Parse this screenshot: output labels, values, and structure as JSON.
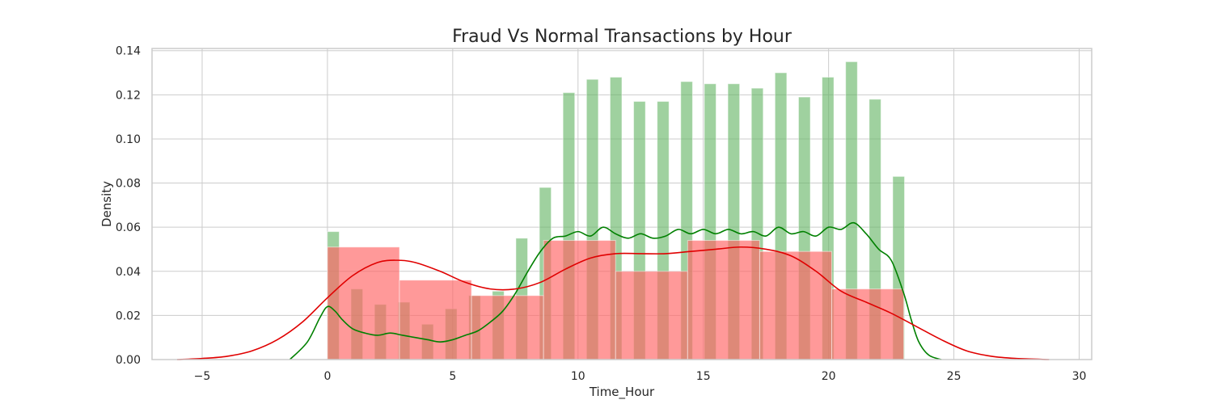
{
  "chart_data": {
    "type": "bar",
    "title": "Fraud Vs Normal Transactions by Hour",
    "xlabel": "Time_Hour",
    "ylabel": "Density",
    "xlim": [
      -7,
      30.5
    ],
    "ylim": [
      0,
      0.141
    ],
    "xticks": [
      -5,
      0,
      5,
      10,
      15,
      20,
      25,
      30
    ],
    "xtick_labels": [
      "−5",
      "0",
      "5",
      "10",
      "15",
      "20",
      "25",
      "30"
    ],
    "yticks": [
      0,
      0.02,
      0.04,
      0.06,
      0.08,
      0.1,
      0.12,
      0.14
    ],
    "ytick_labels": [
      "0.00",
      "0.02",
      "0.04",
      "0.06",
      "0.08",
      "0.10",
      "0.12",
      "0.14"
    ],
    "grid": true,
    "colors": {
      "normal_bar": "#64b464",
      "normal_line": "#008000",
      "fraud_bar": "#ff6464",
      "fraud_line": "#e00000",
      "grid": "#cccccc",
      "frame": "#cccccc"
    },
    "series": [
      {
        "kind": "histogram",
        "color_key": "normal",
        "bins": [
          [
            0.0,
            0.47,
            0.058
          ],
          [
            0.94,
            1.41,
            0.032
          ],
          [
            1.88,
            2.35,
            0.025
          ],
          [
            2.82,
            3.29,
            0.026
          ],
          [
            3.76,
            4.23,
            0.016
          ],
          [
            4.7,
            5.17,
            0.023
          ],
          [
            5.64,
            6.11,
            0.029
          ],
          [
            6.58,
            7.05,
            0.031
          ],
          [
            7.52,
            7.99,
            0.055
          ],
          [
            8.46,
            8.93,
            0.078
          ],
          [
            9.4,
            9.87,
            0.121
          ],
          [
            10.34,
            10.81,
            0.127
          ],
          [
            11.28,
            11.75,
            0.128
          ],
          [
            12.22,
            12.69,
            0.117
          ],
          [
            13.16,
            13.63,
            0.117
          ],
          [
            14.1,
            14.57,
            0.126
          ],
          [
            15.04,
            15.51,
            0.125
          ],
          [
            15.98,
            16.45,
            0.125
          ],
          [
            16.92,
            17.39,
            0.123
          ],
          [
            17.86,
            18.33,
            0.13
          ],
          [
            18.8,
            19.27,
            0.119
          ],
          [
            19.74,
            20.21,
            0.128
          ],
          [
            20.68,
            21.15,
            0.135
          ],
          [
            21.62,
            22.09,
            0.118
          ],
          [
            22.56,
            23.03,
            0.083
          ]
        ]
      },
      {
        "kind": "histogram",
        "color_key": "fraud",
        "bins": [
          [
            0.0,
            2.875,
            0.051
          ],
          [
            2.875,
            5.75,
            0.036
          ],
          [
            5.75,
            8.625,
            0.029
          ],
          [
            8.625,
            11.5,
            0.054
          ],
          [
            11.5,
            14.375,
            0.04
          ],
          [
            14.375,
            17.25,
            0.054
          ],
          [
            17.25,
            20.125,
            0.049
          ],
          [
            20.125,
            23.0,
            0.032
          ]
        ]
      },
      {
        "kind": "kde",
        "color_key": "normal",
        "x": [
          -1.5,
          -0.8,
          -0.3,
          0.0,
          0.3,
          0.6,
          1.0,
          1.5,
          2.0,
          2.5,
          3.0,
          3.5,
          4.0,
          4.5,
          5.0,
          5.5,
          6.0,
          6.5,
          7.0,
          7.5,
          8.0,
          8.5,
          9.0,
          9.5,
          10.0,
          10.5,
          11.0,
          11.5,
          12.0,
          12.5,
          13.0,
          13.5,
          14.0,
          14.5,
          15.0,
          15.5,
          16.0,
          16.5,
          17.0,
          17.5,
          18.0,
          18.5,
          19.0,
          19.5,
          20.0,
          20.5,
          21.0,
          21.5,
          22.0,
          22.5,
          23.0,
          23.3,
          23.6,
          24.0,
          24.5
        ],
        "y": [
          0.0,
          0.008,
          0.019,
          0.024,
          0.022,
          0.018,
          0.014,
          0.012,
          0.011,
          0.012,
          0.011,
          0.01,
          0.009,
          0.008,
          0.009,
          0.011,
          0.013,
          0.017,
          0.022,
          0.03,
          0.04,
          0.049,
          0.055,
          0.056,
          0.058,
          0.056,
          0.06,
          0.057,
          0.055,
          0.057,
          0.055,
          0.056,
          0.059,
          0.057,
          0.059,
          0.057,
          0.059,
          0.057,
          0.058,
          0.056,
          0.06,
          0.057,
          0.058,
          0.056,
          0.06,
          0.059,
          0.062,
          0.057,
          0.05,
          0.045,
          0.03,
          0.018,
          0.008,
          0.002,
          0.0
        ]
      },
      {
        "kind": "kde",
        "color_key": "fraud",
        "x": [
          -6,
          -5,
          -4,
          -3,
          -2,
          -1,
          0,
          1,
          2,
          2.8,
          3.5,
          4.5,
          5.5,
          6.5,
          7.5,
          8.5,
          9.5,
          10.5,
          11.5,
          12.5,
          13.5,
          14.5,
          15.5,
          16.5,
          17.5,
          18.5,
          19.5,
          20.5,
          21.5,
          22.5,
          23.5,
          24.5,
          25.5,
          26.5,
          27.5,
          28.8
        ],
        "y": [
          0.0,
          0.0005,
          0.0015,
          0.004,
          0.009,
          0.017,
          0.028,
          0.038,
          0.044,
          0.045,
          0.044,
          0.04,
          0.035,
          0.032,
          0.032,
          0.035,
          0.041,
          0.046,
          0.048,
          0.048,
          0.048,
          0.049,
          0.05,
          0.051,
          0.05,
          0.047,
          0.04,
          0.031,
          0.026,
          0.021,
          0.015,
          0.009,
          0.004,
          0.0015,
          0.0005,
          0.0
        ]
      }
    ]
  }
}
